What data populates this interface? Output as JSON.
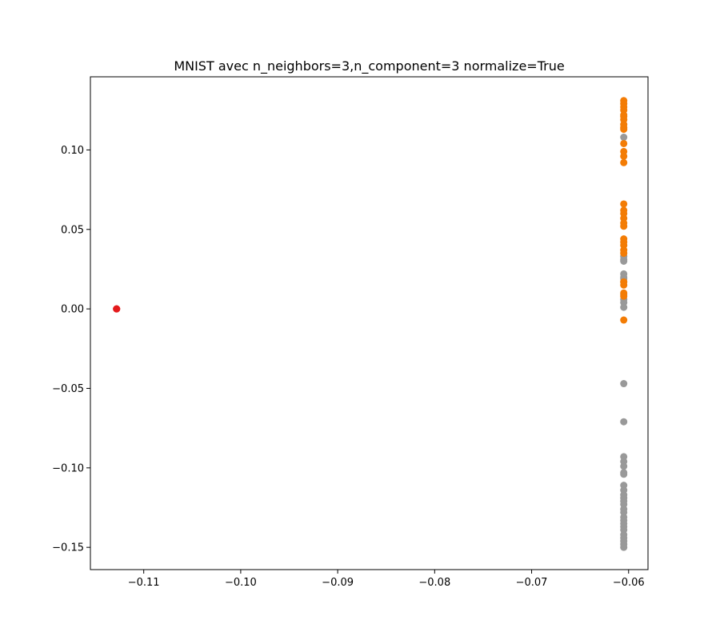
{
  "chart_data": {
    "type": "scatter",
    "title": "MNIST avec n_neighbors=3,n_component=3 normalize=True",
    "xlabel": "",
    "ylabel": "",
    "xlim": [
      -0.1155,
      -0.058
    ],
    "ylim": [
      -0.164,
      0.146
    ],
    "grid": false,
    "xticks": [
      -0.11,
      -0.1,
      -0.09,
      -0.08,
      -0.07,
      -0.06
    ],
    "xtick_labels": [
      "−0.11",
      "−0.10",
      "−0.09",
      "−0.08",
      "−0.07",
      "−0.06"
    ],
    "yticks": [
      0.1,
      0.05,
      0.0,
      -0.05,
      -0.1,
      -0.15
    ],
    "ytick_labels": [
      "0.10",
      "0.05",
      "0.00",
      "−0.05",
      "−0.10",
      "−0.15"
    ],
    "series": [
      {
        "color": "#999999",
        "x": [
          -0.0605,
          -0.0605,
          -0.0605,
          -0.0605,
          -0.0605,
          -0.0605,
          -0.0605,
          -0.0605,
          -0.0605,
          -0.0605,
          -0.0605,
          -0.0605,
          -0.0605,
          -0.0605,
          -0.0605,
          -0.0605,
          -0.0605,
          -0.0605,
          -0.0605,
          -0.0605,
          -0.0605,
          -0.0605,
          -0.0605,
          -0.0605,
          -0.0605,
          -0.0605,
          -0.0605,
          -0.0605,
          -0.0605,
          -0.0605,
          -0.0605,
          -0.0605,
          -0.0605,
          -0.0605,
          -0.0605,
          -0.0605,
          -0.0605
        ],
        "y": [
          0.108,
          0.033,
          0.03,
          0.022,
          0.019,
          0.017,
          0.009,
          0.006,
          0.004,
          0.001,
          -0.047,
          -0.071,
          -0.093,
          -0.096,
          -0.099,
          -0.103,
          -0.104,
          -0.111,
          -0.114,
          -0.117,
          -0.119,
          -0.121,
          -0.123,
          -0.126,
          -0.128,
          -0.131,
          -0.133,
          -0.135,
          -0.137,
          -0.139,
          -0.142,
          -0.144,
          -0.146,
          -0.148,
          -0.15,
          0.031,
          0.02
        ]
      },
      {
        "color": "#f37c05",
        "x": [
          -0.0605,
          -0.0605,
          -0.0605,
          -0.0605,
          -0.0605,
          -0.0605,
          -0.0605,
          -0.0605,
          -0.0605,
          -0.0605,
          -0.0605,
          -0.0605,
          -0.0605,
          -0.0605,
          -0.0605,
          -0.0605,
          -0.0605,
          -0.0605,
          -0.0605,
          -0.0605,
          -0.0605,
          -0.0605,
          -0.0605,
          -0.0605,
          -0.0605,
          -0.0605,
          -0.0605,
          -0.0605,
          -0.0605,
          -0.0605
        ],
        "y": [
          0.131,
          0.129,
          0.127,
          0.125,
          0.122,
          0.119,
          0.116,
          0.113,
          0.104,
          0.099,
          0.096,
          0.092,
          0.066,
          0.062,
          0.06,
          0.057,
          0.054,
          0.052,
          0.044,
          0.042,
          0.04,
          0.037,
          0.035,
          0.017,
          0.015,
          0.01,
          0.008,
          -0.007,
          0.121,
          0.114
        ]
      },
      {
        "color": "#e41a1c",
        "x": [
          -0.1128,
          -0.1128,
          -0.1128
        ],
        "y": [
          0.0,
          0.0,
          0.0
        ]
      }
    ]
  }
}
